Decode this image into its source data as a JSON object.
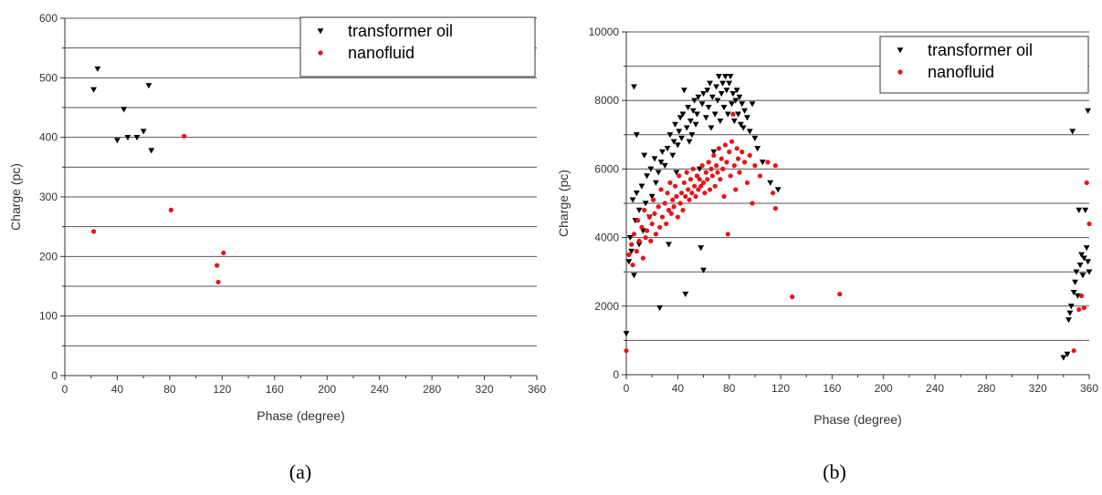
{
  "chart_data": [
    {
      "type": "scatter",
      "caption": "(a)",
      "xlabel": "Phase (degree)",
      "ylabel": "Charge (pc)",
      "xlim": [
        0,
        360
      ],
      "ylim": [
        0,
        600
      ],
      "xticks": [
        0,
        40,
        80,
        120,
        160,
        200,
        240,
        280,
        320,
        360
      ],
      "yticks": [
        0,
        100,
        200,
        300,
        400,
        500,
        600
      ],
      "grid": "horizontal",
      "legend_position": "top-right",
      "series": [
        {
          "name": "transformer oil",
          "marker": "triangle-down",
          "color": "#000000",
          "points": [
            [
              22,
              480
            ],
            [
              25,
              515
            ],
            [
              40,
              395
            ],
            [
              45,
              447
            ],
            [
              48,
              400
            ],
            [
              55,
              400
            ],
            [
              60,
              410
            ],
            [
              64,
              487
            ],
            [
              66,
              378
            ]
          ]
        },
        {
          "name": "nanofluid",
          "marker": "circle",
          "color": "#e8131a",
          "points": [
            [
              22,
              242
            ],
            [
              81,
              278
            ],
            [
              91,
              402
            ],
            [
              116,
              185
            ],
            [
              117,
              157
            ],
            [
              121,
              206
            ]
          ]
        }
      ]
    },
    {
      "type": "scatter",
      "caption": "(b)",
      "xlabel": "Phase (degree)",
      "ylabel": "Charge (pc)",
      "xlim": [
        0,
        360
      ],
      "ylim": [
        0,
        10000
      ],
      "xticks": [
        0,
        40,
        80,
        120,
        160,
        200,
        240,
        280,
        320,
        360
      ],
      "yticks": [
        0,
        2000,
        4000,
        6000,
        8000,
        10000
      ],
      "grid": "horizontal",
      "legend_position": "top-right",
      "series": [
        {
          "name": "transformer oil",
          "marker": "triangle-down",
          "color": "#000000",
          "points": [
            [
              0,
              1200
            ],
            [
              2,
              3300
            ],
            [
              3,
              4000
            ],
            [
              4,
              3600
            ],
            [
              5,
              5100
            ],
            [
              6,
              2900
            ],
            [
              6,
              8400
            ],
            [
              7,
              4500
            ],
            [
              8,
              5300
            ],
            [
              8,
              7000
            ],
            [
              10,
              4800
            ],
            [
              10,
              3800
            ],
            [
              12,
              5500
            ],
            [
              13,
              4200
            ],
            [
              14,
              6400
            ],
            [
              15,
              5000
            ],
            [
              16,
              5800
            ],
            [
              18,
              4600
            ],
            [
              19,
              6000
            ],
            [
              20,
              5200
            ],
            [
              22,
              6300
            ],
            [
              23,
              5600
            ],
            [
              25,
              5900
            ],
            [
              26,
              1950
            ],
            [
              27,
              6200
            ],
            [
              28,
              6500
            ],
            [
              30,
              6100
            ],
            [
              32,
              6600
            ],
            [
              33,
              3800
            ],
            [
              34,
              7000
            ],
            [
              36,
              6400
            ],
            [
              37,
              6800
            ],
            [
              38,
              7300
            ],
            [
              39,
              5900
            ],
            [
              40,
              6700
            ],
            [
              41,
              7100
            ],
            [
              42,
              7500
            ],
            [
              43,
              6900
            ],
            [
              44,
              7600
            ],
            [
              45,
              8300
            ],
            [
              46,
              2350
            ],
            [
              47,
              7200
            ],
            [
              48,
              7800
            ],
            [
              49,
              6800
            ],
            [
              50,
              7400
            ],
            [
              51,
              7000
            ],
            [
              52,
              7700
            ],
            [
              53,
              8000
            ],
            [
              54,
              7300
            ],
            [
              55,
              7600
            ],
            [
              56,
              8100
            ],
            [
              57,
              6000
            ],
            [
              58,
              3700
            ],
            [
              59,
              7900
            ],
            [
              60,
              3050
            ],
            [
              60,
              8200
            ],
            [
              62,
              7500
            ],
            [
              63,
              8300
            ],
            [
              64,
              7800
            ],
            [
              65,
              8500
            ],
            [
              66,
              7200
            ],
            [
              67,
              8100
            ],
            [
              68,
              6500
            ],
            [
              69,
              7600
            ],
            [
              70,
              8400
            ],
            [
              71,
              8000
            ],
            [
              72,
              8700
            ],
            [
              73,
              7400
            ],
            [
              74,
              8200
            ],
            [
              75,
              8500
            ],
            [
              76,
              7800
            ],
            [
              77,
              8700
            ],
            [
              78,
              8300
            ],
            [
              79,
              7600
            ],
            [
              80,
              8500
            ],
            [
              81,
              8700
            ],
            [
              82,
              7900
            ],
            [
              83,
              8200
            ],
            [
              84,
              7400
            ],
            [
              85,
              8000
            ],
            [
              86,
              8300
            ],
            [
              87,
              7600
            ],
            [
              88,
              8100
            ],
            [
              89,
              7300
            ],
            [
              90,
              7900
            ],
            [
              91,
              7200
            ],
            [
              92,
              7700
            ],
            [
              94,
              7500
            ],
            [
              96,
              7100
            ],
            [
              98,
              7900
            ],
            [
              100,
              6900
            ],
            [
              102,
              6600
            ],
            [
              106,
              6200
            ],
            [
              112,
              5600
            ],
            [
              118,
              5400
            ],
            [
              340,
              500
            ],
            [
              343,
              600
            ],
            [
              344,
              1600
            ],
            [
              345,
              1800
            ],
            [
              346,
              2000
            ],
            [
              347,
              7100
            ],
            [
              348,
              2400
            ],
            [
              349,
              2700
            ],
            [
              350,
              3000
            ],
            [
              351,
              2300
            ],
            [
              352,
              4800
            ],
            [
              353,
              3200
            ],
            [
              354,
              3500
            ],
            [
              355,
              2900
            ],
            [
              356,
              3400
            ],
            [
              357,
              4800
            ],
            [
              358,
              3700
            ],
            [
              359,
              3300
            ],
            [
              359,
              7700
            ],
            [
              360,
              3000
            ]
          ]
        },
        {
          "name": "nanofluid",
          "marker": "circle",
          "color": "#e8131a",
          "points": [
            [
              0,
              700
            ],
            [
              2,
              3500
            ],
            [
              4,
              3800
            ],
            [
              5,
              3200
            ],
            [
              6,
              4100
            ],
            [
              8,
              3600
            ],
            [
              9,
              4500
            ],
            [
              10,
              3900
            ],
            [
              12,
              4300
            ],
            [
              13,
              3400
            ],
            [
              14,
              4800
            ],
            [
              15,
              4000
            ],
            [
              16,
              4200
            ],
            [
              18,
              4600
            ],
            [
              19,
              3900
            ],
            [
              20,
              4400
            ],
            [
              21,
              5100
            ],
            [
              22,
              4700
            ],
            [
              23,
              4100
            ],
            [
              25,
              4900
            ],
            [
              26,
              4300
            ],
            [
              27,
              5400
            ],
            [
              28,
              4600
            ],
            [
              30,
              5000
            ],
            [
              31,
              4400
            ],
            [
              32,
              5300
            ],
            [
              33,
              4800
            ],
            [
              34,
              5600
            ],
            [
              35,
              4700
            ],
            [
              36,
              5100
            ],
            [
              37,
              4900
            ],
            [
              38,
              5500
            ],
            [
              39,
              5200
            ],
            [
              40,
              4600
            ],
            [
              41,
              5800
            ],
            [
              42,
              5000
            ],
            [
              43,
              5300
            ],
            [
              44,
              4800
            ],
            [
              45,
              5600
            ],
            [
              46,
              5200
            ],
            [
              47,
              5900
            ],
            [
              48,
              5400
            ],
            [
              49,
              5100
            ],
            [
              50,
              5700
            ],
            [
              51,
              5300
            ],
            [
              52,
              6000
            ],
            [
              53,
              5500
            ],
            [
              54,
              5200
            ],
            [
              55,
              5800
            ],
            [
              56,
              5400
            ],
            [
              57,
              5700
            ],
            [
              58,
              5500
            ],
            [
              59,
              6100
            ],
            [
              60,
              5600
            ],
            [
              61,
              5300
            ],
            [
              62,
              5900
            ],
            [
              63,
              5700
            ],
            [
              64,
              6200
            ],
            [
              65,
              5400
            ],
            [
              66,
              6000
            ],
            [
              67,
              5800
            ],
            [
              68,
              6400
            ],
            [
              69,
              5500
            ],
            [
              70,
              6100
            ],
            [
              71,
              5900
            ],
            [
              72,
              6600
            ],
            [
              73,
              5700
            ],
            [
              74,
              6300
            ],
            [
              75,
              6000
            ],
            [
              76,
              5200
            ],
            [
              77,
              6700
            ],
            [
              78,
              6200
            ],
            [
              79,
              4100
            ],
            [
              80,
              6500
            ],
            [
              81,
              5800
            ],
            [
              82,
              6800
            ],
            [
              83,
              7600
            ],
            [
              84,
              6100
            ],
            [
              85,
              5400
            ],
            [
              86,
              6600
            ],
            [
              87,
              6300
            ],
            [
              88,
              5900
            ],
            [
              90,
              6500
            ],
            [
              92,
              6200
            ],
            [
              94,
              5600
            ],
            [
              96,
              6400
            ],
            [
              98,
              5000
            ],
            [
              100,
              6100
            ],
            [
              104,
              5800
            ],
            [
              110,
              6200
            ],
            [
              114,
              5300
            ],
            [
              116,
              6100
            ],
            [
              116,
              4850
            ],
            [
              129,
              2270
            ],
            [
              166,
              2350
            ],
            [
              348,
              700
            ],
            [
              352,
              1900
            ],
            [
              354,
              2300
            ],
            [
              356,
              1950
            ],
            [
              358,
              5600
            ],
            [
              360,
              4400
            ]
          ]
        }
      ]
    }
  ]
}
